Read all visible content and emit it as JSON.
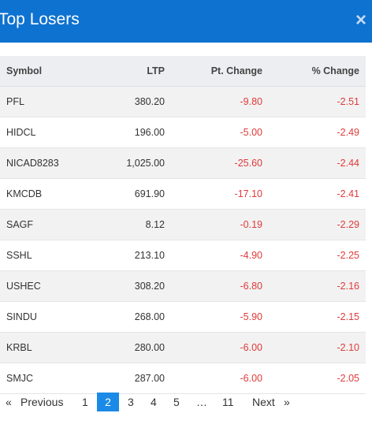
{
  "modal": {
    "title": "Top Losers",
    "close_icon": "×"
  },
  "table": {
    "headers": {
      "symbol": "Symbol",
      "ltp": "LTP",
      "pt_change": "Pt. Change",
      "pct_change": "% Change"
    },
    "rows": [
      {
        "symbol": "PFL",
        "ltp": "380.20",
        "pt_change": "-9.80",
        "pct_change": "-2.51"
      },
      {
        "symbol": "HIDCL",
        "ltp": "196.00",
        "pt_change": "-5.00",
        "pct_change": "-2.49"
      },
      {
        "symbol": "NICAD8283",
        "ltp": "1,025.00",
        "pt_change": "-25.60",
        "pct_change": "-2.44"
      },
      {
        "symbol": "KMCDB",
        "ltp": "691.90",
        "pt_change": "-17.10",
        "pct_change": "-2.41"
      },
      {
        "symbol": "SAGF",
        "ltp": "8.12",
        "pt_change": "-0.19",
        "pct_change": "-2.29"
      },
      {
        "symbol": "SSHL",
        "ltp": "213.10",
        "pt_change": "-4.90",
        "pct_change": "-2.25"
      },
      {
        "symbol": "USHEC",
        "ltp": "308.20",
        "pt_change": "-6.80",
        "pct_change": "-2.16"
      },
      {
        "symbol": "SINDU",
        "ltp": "268.00",
        "pt_change": "-5.90",
        "pct_change": "-2.15"
      },
      {
        "symbol": "KRBL",
        "ltp": "280.00",
        "pt_change": "-6.00",
        "pct_change": "-2.10"
      },
      {
        "symbol": "SMJC",
        "ltp": "287.00",
        "pt_change": "-6.00",
        "pct_change": "-2.05"
      }
    ]
  },
  "pagination": {
    "prev_arrow": "«",
    "previous": "Previous",
    "pages": [
      "1",
      "2",
      "3",
      "4",
      "5"
    ],
    "current_page": "2",
    "ellipsis": "…",
    "last_page": "11",
    "next": "Next",
    "next_arrow": "»"
  },
  "colors": {
    "header_bg": "#0e72d0",
    "negative": "#e03a3a",
    "active_page": "#1a8ae6"
  }
}
